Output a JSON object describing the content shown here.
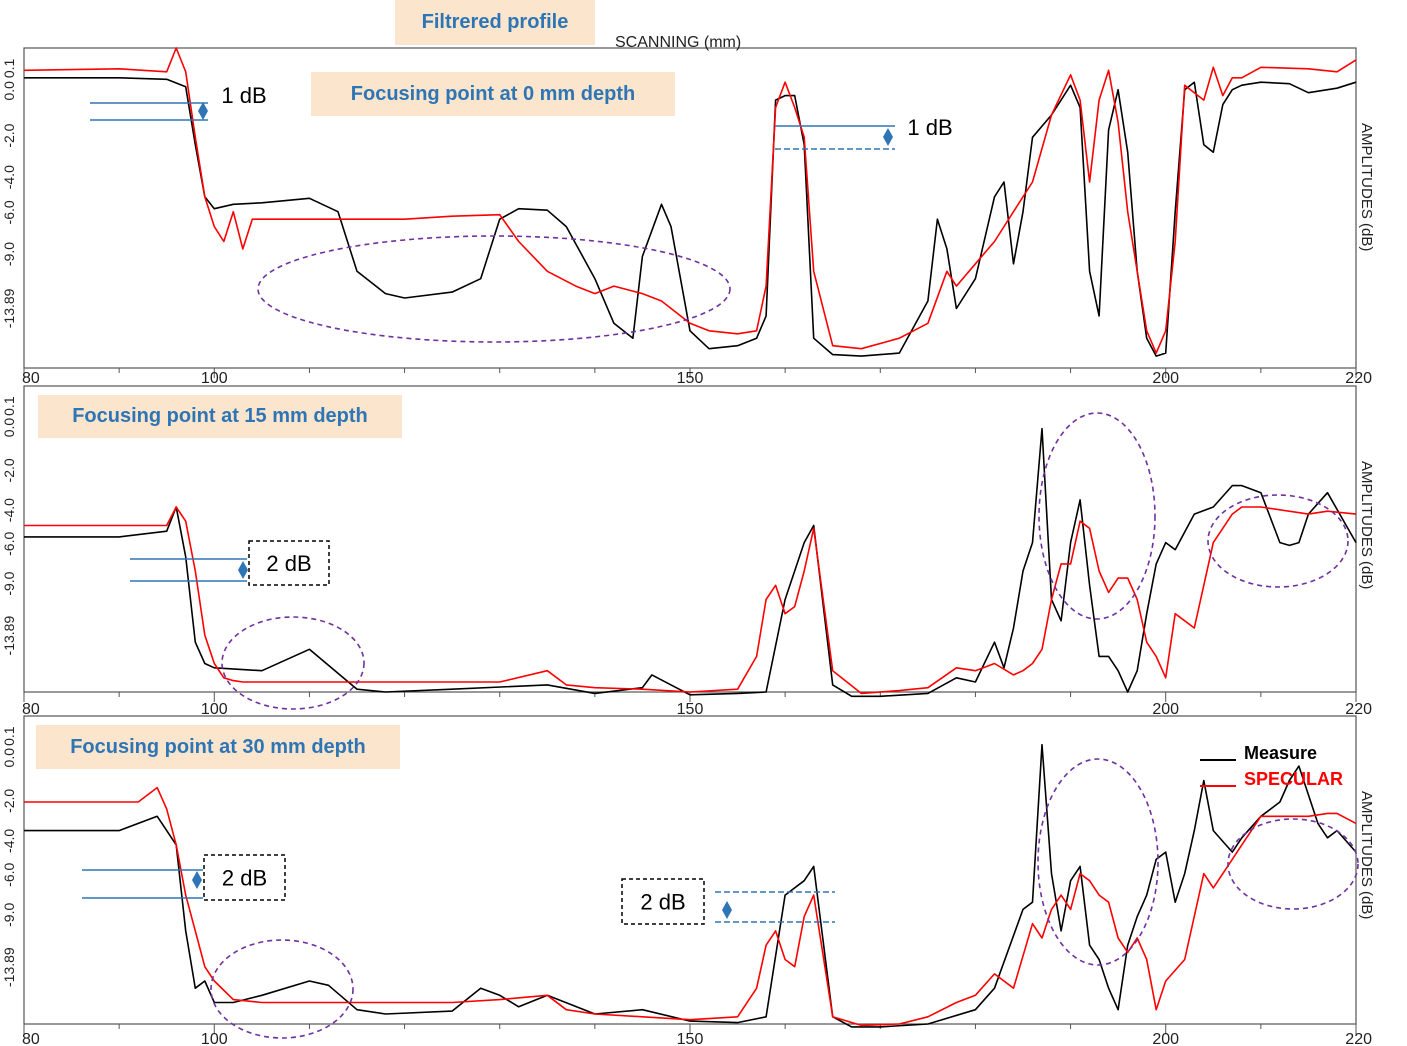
{
  "header": {
    "filtered_label": "Filtrered profile",
    "scan_axis_title": "SCANNING (mm)"
  },
  "legend": {
    "measure_label": "Measure",
    "specular_label": "SPECULAR",
    "measure_color": "#000000",
    "specular_color": "#ff0000"
  },
  "colors": {
    "badge_bg": "#fbe5cc",
    "badge_text": "#2e75b6",
    "annotation_line": "#2e75b6",
    "ellipse": "#7030a0"
  },
  "chart_data": [
    {
      "type": "line",
      "title": "Focusing point at 0 mm depth",
      "xlabel": "SCANNING (mm)",
      "ylabel": "AMPLITUDES (dB)",
      "xlim": [
        80,
        220
      ],
      "ylim": [
        -20.5,
        1.0
      ],
      "x_ticks": [
        "80",
        "100",
        "150",
        "200",
        "220"
      ],
      "y_ticks": [
        "0.1",
        "0.0",
        "-2.0",
        "-4.0",
        "-6.0",
        "-9.0",
        "-13.89"
      ],
      "annotations": [
        "1 dB",
        "1 dB"
      ],
      "series": [
        {
          "name": "Measure",
          "x": [
            80,
            90,
            95,
            97,
            98,
            99,
            100,
            102,
            105,
            110,
            113,
            115,
            118,
            120,
            125,
            128,
            130,
            132,
            135,
            137,
            140,
            142,
            144,
            145,
            147,
            148,
            150,
            152,
            155,
            157,
            158,
            159,
            160,
            161,
            162,
            163,
            165,
            168,
            172,
            175,
            176,
            177,
            178,
            180,
            182,
            183,
            184,
            185,
            186,
            188,
            190,
            191,
            192,
            193,
            194,
            195,
            196,
            197,
            198,
            199,
            200,
            201,
            202,
            203,
            204,
            205,
            206,
            207,
            208,
            210,
            213,
            215,
            218,
            220
          ],
          "y": [
            -1.0,
            -1.0,
            -1.1,
            -1.6,
            -5.5,
            -9.0,
            -9.8,
            -9.5,
            -9.4,
            -9.1,
            -10.0,
            -14.0,
            -15.5,
            -15.8,
            -15.4,
            -14.5,
            -10.5,
            -9.8,
            -9.9,
            -11.0,
            -14.5,
            -17.5,
            -18.5,
            -13.0,
            -9.5,
            -11.0,
            -18.0,
            -19.2,
            -19.0,
            -18.5,
            -17.0,
            -2.5,
            -2.2,
            -2.2,
            -5.5,
            -18.5,
            -19.6,
            -19.7,
            -19.5,
            -16.0,
            -10.5,
            -12.5,
            -16.5,
            -14.5,
            -9.0,
            -8.0,
            -13.5,
            -10.0,
            -5.0,
            -3.5,
            -1.5,
            -3.0,
            -14.0,
            -17.0,
            -4.5,
            -1.8,
            -6.0,
            -14.0,
            -18.5,
            -19.7,
            -19.5,
            -10.0,
            -1.8,
            -1.3,
            -5.5,
            -6.0,
            -2.8,
            -1.8,
            -1.5,
            -1.3,
            -1.4,
            -2.0,
            -1.7,
            -1.3
          ]
        },
        {
          "name": "SPECULAR",
          "x": [
            80,
            90,
            95,
            96,
            97,
            98,
            99,
            100,
            101,
            102,
            103,
            104,
            105,
            108,
            110,
            115,
            120,
            125,
            130,
            132,
            135,
            138,
            140,
            142,
            145,
            147,
            150,
            152,
            155,
            157,
            158,
            159,
            160,
            161,
            162,
            163,
            165,
            168,
            172,
            175,
            177,
            178,
            180,
            182,
            184,
            186,
            188,
            190,
            191,
            192,
            193,
            194,
            195,
            196,
            197,
            198,
            199,
            200,
            201,
            202,
            203,
            204,
            205,
            206,
            207,
            208,
            210,
            215,
            218,
            220
          ],
          "y": [
            -0.5,
            -0.4,
            -0.6,
            1.0,
            -0.6,
            -5.0,
            -9.0,
            -11.0,
            -12.0,
            -10.0,
            -12.5,
            -10.5,
            -10.5,
            -10.5,
            -10.5,
            -10.5,
            -10.5,
            -10.3,
            -10.2,
            -12.0,
            -14.0,
            -15.0,
            -15.5,
            -15.0,
            -15.5,
            -16.0,
            -17.5,
            -18.0,
            -18.2,
            -18.0,
            -15.0,
            -3.0,
            -1.3,
            -3.0,
            -5.0,
            -14.0,
            -19.0,
            -19.2,
            -18.5,
            -17.5,
            -14.0,
            -15.0,
            -13.5,
            -12.0,
            -10.0,
            -8.0,
            -3.5,
            -0.8,
            -2.5,
            -8.0,
            -2.5,
            -0.5,
            -4.0,
            -10.0,
            -14.0,
            -18.0,
            -19.5,
            -18.0,
            -12.0,
            -1.5,
            -2.0,
            -2.5,
            -0.3,
            -2.2,
            -1.0,
            -1.0,
            -0.3,
            -0.4,
            -0.6,
            0.2
          ]
        }
      ]
    },
    {
      "type": "line",
      "title": "Focusing point at 15 mm depth",
      "xlabel": "SCANNING (mm)",
      "ylabel": "AMPLITUDES (dB)",
      "xlim": [
        80,
        220
      ],
      "ylim": [
        -20.5,
        1.0
      ],
      "x_ticks": [
        "80",
        "100",
        "150",
        "200",
        "220"
      ],
      "y_ticks": [
        "0.1",
        "0.0",
        "-2.0",
        "-4.0",
        "-6.0",
        "-9.0",
        "-13.89"
      ],
      "annotations": [
        "2 dB"
      ],
      "series": [
        {
          "name": "Measure",
          "x": [
            80,
            90,
            95,
            96,
            97,
            98,
            99,
            100,
            105,
            110,
            115,
            118,
            125,
            135,
            140,
            145,
            146,
            148,
            150,
            155,
            158,
            160,
            162,
            163,
            165,
            167,
            170,
            175,
            178,
            180,
            182,
            183,
            184,
            185,
            186,
            187,
            188,
            189,
            190,
            191,
            192,
            193,
            194,
            195,
            196,
            197,
            198,
            199,
            200,
            201,
            203,
            205,
            207,
            208,
            210,
            212,
            213,
            214,
            215,
            217,
            220
          ],
          "y": [
            -9.6,
            -9.6,
            -9.2,
            -7.5,
            -11.0,
            -17.0,
            -18.5,
            -18.8,
            -19.0,
            -17.5,
            -20.3,
            -20.5,
            -20.3,
            -20.0,
            -20.6,
            -20.2,
            -19.3,
            -20.0,
            -20.7,
            -20.6,
            -20.5,
            -14.0,
            -10.0,
            -8.8,
            -20.0,
            -20.8,
            -20.8,
            -20.6,
            -19.5,
            -19.8,
            -17.0,
            -18.8,
            -16.0,
            -12.0,
            -10.0,
            -2.0,
            -14.0,
            -15.5,
            -10.0,
            -7.0,
            -13.0,
            -18.0,
            -18.0,
            -19.0,
            -20.5,
            -19.0,
            -15.0,
            -11.5,
            -10.0,
            -10.5,
            -8.0,
            -7.5,
            -6.0,
            -6.0,
            -6.5,
            -10.0,
            -10.2,
            -10.0,
            -8.0,
            -6.5,
            -10.0
          ]
        },
        {
          "name": "SPECULAR",
          "x": [
            80,
            95,
            96,
            97,
            98,
            99,
            100,
            101,
            102,
            103,
            105,
            110,
            130,
            135,
            137,
            140,
            145,
            150,
            155,
            157,
            158,
            159,
            160,
            161,
            162,
            163,
            165,
            168,
            172,
            175,
            178,
            180,
            182,
            184,
            185,
            186,
            187,
            188,
            189,
            190,
            191,
            192,
            193,
            194,
            195,
            196,
            197,
            198,
            199,
            200,
            201,
            203,
            205,
            207,
            208,
            210,
            215,
            217,
            220
          ],
          "y": [
            -8.8,
            -8.8,
            -7.5,
            -8.5,
            -12.0,
            -16.5,
            -18.5,
            -19.5,
            -19.7,
            -19.8,
            -19.8,
            -19.8,
            -19.8,
            -19.0,
            -20.0,
            -20.2,
            -20.3,
            -20.5,
            -20.3,
            -18.0,
            -14.0,
            -13.0,
            -15.0,
            -14.5,
            -12.0,
            -9.0,
            -19.0,
            -20.6,
            -20.4,
            -20.2,
            -18.8,
            -19.0,
            -18.5,
            -19.3,
            -19.0,
            -18.5,
            -17.5,
            -14.0,
            -11.5,
            -11.5,
            -8.5,
            -9.0,
            -12.0,
            -13.5,
            -12.5,
            -12.5,
            -14.0,
            -17.0,
            -18.0,
            -19.5,
            -15.0,
            -16.0,
            -10.0,
            -8.0,
            -7.5,
            -7.5,
            -8.0,
            -7.8,
            -8.0
          ]
        }
      ]
    },
    {
      "type": "line",
      "title": "Focusing point at 30 mm depth",
      "xlabel": "SCANNING (mm)",
      "ylabel": "AMPLITUDES (dB)",
      "xlim": [
        80,
        220
      ],
      "ylim": [
        -20.5,
        1.0
      ],
      "x_ticks": [
        "80",
        "100",
        "150",
        "200",
        "220"
      ],
      "y_ticks": [
        "0.1",
        "0.0",
        "-2.0",
        "-4.0",
        "-6.0",
        "-9.0",
        "-13.89"
      ],
      "annotations": [
        "2 dB",
        "2 dB"
      ],
      "series": [
        {
          "name": "Measure",
          "x": [
            80,
            90,
            94,
            95,
            96,
            97,
            98,
            99,
            100,
            102,
            105,
            110,
            112,
            115,
            118,
            125,
            128,
            130,
            132,
            135,
            140,
            145,
            150,
            155,
            158,
            160,
            162,
            163,
            165,
            167,
            170,
            175,
            180,
            182,
            185,
            186,
            187,
            188,
            189,
            190,
            191,
            192,
            193,
            194,
            195,
            196,
            197,
            198,
            199,
            200,
            201,
            202,
            203,
            204,
            205,
            207,
            208,
            210,
            212,
            213,
            214,
            215,
            216,
            217,
            218,
            220
          ],
          "y": [
            -7.0,
            -7.0,
            -6.0,
            -7.0,
            -8.0,
            -14.0,
            -18.0,
            -17.5,
            -19.0,
            -19.0,
            -18.5,
            -17.5,
            -17.8,
            -19.5,
            -19.8,
            -19.6,
            -18.0,
            -18.5,
            -19.3,
            -18.5,
            -19.8,
            -19.5,
            -20.3,
            -20.4,
            -20.0,
            -11.5,
            -10.5,
            -9.5,
            -20.0,
            -20.7,
            -20.7,
            -20.5,
            -19.5,
            -18.0,
            -12.5,
            -12.0,
            -1.0,
            -10.0,
            -14.0,
            -10.5,
            -9.5,
            -15.0,
            -16.0,
            -18.0,
            -19.5,
            -15.0,
            -13.0,
            -11.5,
            -9.0,
            -8.5,
            -12.0,
            -10.0,
            -7.0,
            -3.5,
            -7.0,
            -8.5,
            -7.5,
            -6.0,
            -5.0,
            -3.5,
            -2.5,
            -4.5,
            -6.5,
            -7.5,
            -7.0,
            -8.5
          ]
        },
        {
          "name": "SPECULAR",
          "x": [
            80,
            92,
            94,
            95,
            96,
            97,
            98,
            99,
            100,
            102,
            105,
            110,
            115,
            125,
            130,
            135,
            137,
            140,
            145,
            150,
            155,
            157,
            158,
            159,
            160,
            161,
            162,
            163,
            165,
            168,
            172,
            175,
            178,
            180,
            182,
            184,
            186,
            187,
            188,
            189,
            190,
            191,
            192,
            193,
            194,
            195,
            196,
            197,
            198,
            199,
            200,
            202,
            204,
            205,
            207,
            208,
            210,
            215,
            217,
            218,
            220
          ],
          "y": [
            -5.0,
            -5.0,
            -4.0,
            -5.5,
            -8.0,
            -11.5,
            -14.0,
            -16.5,
            -17.5,
            -18.8,
            -19.0,
            -19.0,
            -19.0,
            -19.0,
            -18.8,
            -18.5,
            -19.5,
            -19.8,
            -20.0,
            -20.2,
            -20.0,
            -18.0,
            -15.0,
            -14.0,
            -16.0,
            -16.5,
            -13.0,
            -11.5,
            -20.0,
            -20.6,
            -20.5,
            -20.0,
            -19.0,
            -18.5,
            -17.0,
            -18.0,
            -13.5,
            -14.5,
            -12.5,
            -11.5,
            -12.5,
            -10.0,
            -10.5,
            -11.5,
            -12.0,
            -14.5,
            -15.5,
            -14.5,
            -16.0,
            -19.5,
            -17.5,
            -16.0,
            -10.0,
            -11.0,
            -9.0,
            -8.0,
            -6.0,
            -6.0,
            -5.8,
            -5.8,
            -6.5
          ]
        }
      ]
    }
  ]
}
